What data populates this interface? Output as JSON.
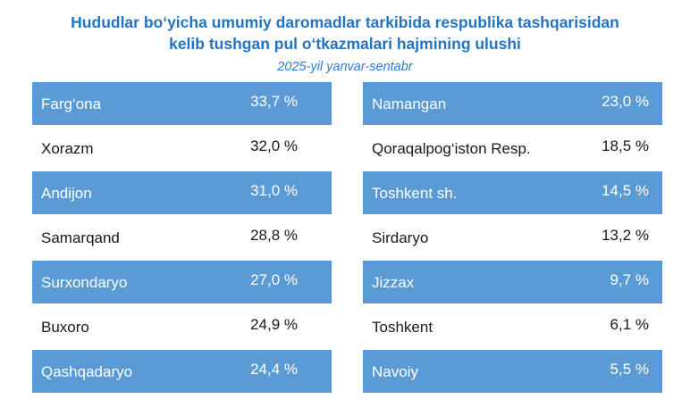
{
  "title_line1": "Hududlar bo‘yicha umumiy daromadlar tarkibida respublika tashqarisidan",
  "title_line2": "kelib tushgan pul o‘tkazmalari hajmining ulushi",
  "subtitle": "2025-yil yanvar-sentabr",
  "colors": {
    "title": "#1f74c5",
    "shaded_row": "#5b9bd5",
    "shaded_text": "#ffffff",
    "plain_text": "#1a1a1a"
  },
  "chart_data": {
    "type": "table",
    "title": "Hududlar bo‘yicha umumiy daromadlar tarkibida respublika tashqarisidan kelib tushgan pul o‘tkazmalari hajmining ulushi",
    "subtitle": "2025-yil yanvar-sentabr",
    "left": [
      {
        "region": "Farg‘ona",
        "value": 33.7,
        "label": "33,7 %"
      },
      {
        "region": "Xorazm",
        "value": 32.0,
        "label": "32,0 %"
      },
      {
        "region": "Andijon",
        "value": 31.0,
        "label": "31,0 %"
      },
      {
        "region": "Samarqand",
        "value": 28.8,
        "label": "28,8 %"
      },
      {
        "region": "Surxondaryo",
        "value": 27.0,
        "label": "27,0 %"
      },
      {
        "region": "Buxoro",
        "value": 24.9,
        "label": "24,9 %"
      },
      {
        "region": "Qashqadaryo",
        "value": 24.4,
        "label": "24,4 %"
      }
    ],
    "right": [
      {
        "region": "Namangan",
        "value": 23.0,
        "label": "23,0 %"
      },
      {
        "region": "Qoraqalpog‘iston Resp.",
        "value": 18.5,
        "label": "18,5 %"
      },
      {
        "region": "Toshkent sh.",
        "value": 14.5,
        "label": "14,5 %"
      },
      {
        "region": "Sirdaryo",
        "value": 13.2,
        "label": "13,2 %"
      },
      {
        "region": "Jizzax",
        "value": 9.7,
        "label": "9,7 %"
      },
      {
        "region": "Toshkent",
        "value": 6.1,
        "label": "6,1 %"
      },
      {
        "region": "Navoiy",
        "value": 5.5,
        "label": "5,5 %"
      }
    ]
  }
}
